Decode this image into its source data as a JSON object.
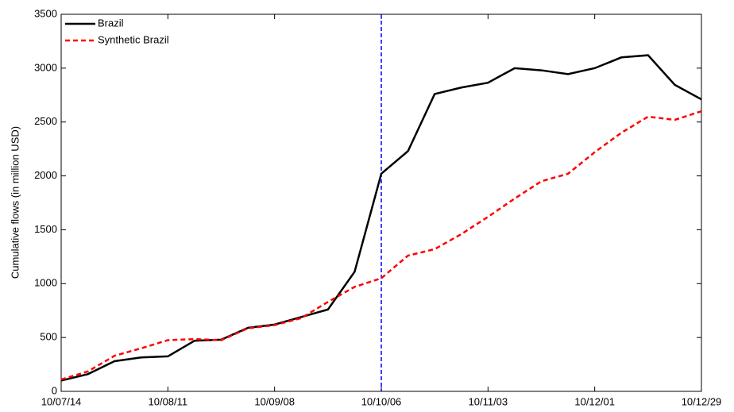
{
  "chart_data": {
    "type": "line",
    "ylabel": "Cumulative flows (in million USD)",
    "categories": [
      "10/07/14",
      null,
      null,
      null,
      "10/08/11",
      null,
      null,
      null,
      "10/09/08",
      null,
      null,
      null,
      "10/10/06",
      null,
      null,
      null,
      "10/11/03",
      null,
      null,
      null,
      "10/12/01",
      null,
      null,
      null,
      "10/12/29"
    ],
    "series": [
      {
        "name": "Brazil",
        "color": "#000000",
        "dash": "solid",
        "values": [
          100,
          160,
          280,
          315,
          325,
          470,
          480,
          590,
          620,
          690,
          760,
          1110,
          2020,
          2230,
          2760,
          2820,
          2865,
          3000,
          2980,
          2945,
          3000,
          3100,
          3120,
          2845,
          2710
        ]
      },
      {
        "name": "Synthetic Brazil",
        "color": "#ff0000",
        "dash": "dashed",
        "values": [
          110,
          185,
          330,
          400,
          475,
          485,
          475,
          585,
          615,
          680,
          830,
          970,
          1050,
          1260,
          1320,
          1460,
          1620,
          1790,
          1950,
          2020,
          2220,
          2400,
          2550,
          2520,
          2600
        ]
      }
    ],
    "vline": {
      "category": "10/10/06",
      "color": "#0000ff"
    },
    "ylim": [
      0,
      3500
    ],
    "yticks": [
      0,
      500,
      1000,
      1500,
      2000,
      2500,
      3000,
      3500
    ],
    "legend": "upper-left"
  }
}
